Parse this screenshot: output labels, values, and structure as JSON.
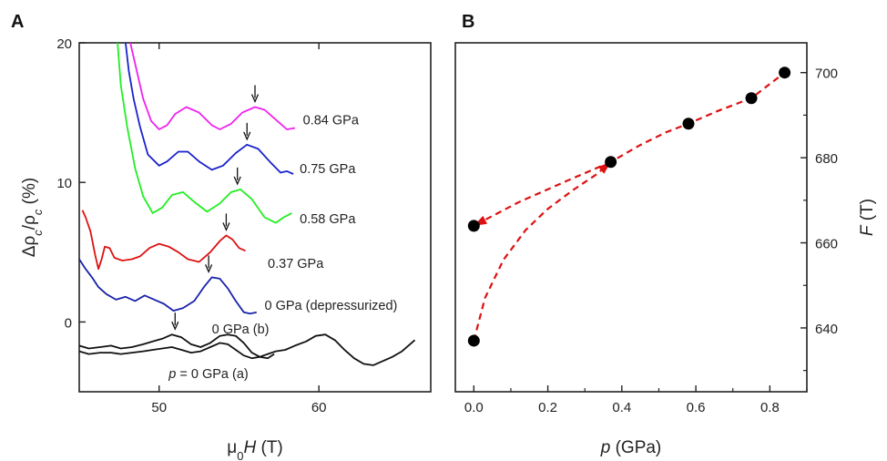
{
  "chart_data": [
    {
      "panel": "A",
      "type": "line",
      "xlabel_parts": [
        "μ",
        "0",
        "H",
        " (T)"
      ],
      "ylabel_parts": [
        "Δρ",
        "c",
        "/ρ",
        "c",
        " (%)"
      ],
      "xlim": [
        45,
        67
      ],
      "ylim": [
        -5,
        20
      ],
      "xticks": [
        50,
        60
      ],
      "yticks": [
        0,
        10,
        20
      ],
      "grid": false,
      "series": [
        {
          "name": "0.84 GPa",
          "color": "#ee22ee",
          "points": [
            [
              48.2,
              20
            ],
            [
              48.5,
              18.5
            ],
            [
              49,
              16
            ],
            [
              49.5,
              14.4
            ],
            [
              50,
              13.8
            ],
            [
              50.5,
              14.1
            ],
            [
              51,
              14.9
            ],
            [
              51.7,
              15.4
            ],
            [
              52.5,
              15
            ],
            [
              53.3,
              14.1
            ],
            [
              53.8,
              13.8
            ],
            [
              54.5,
              14.2
            ],
            [
              55.2,
              15
            ],
            [
              56,
              15.4
            ],
            [
              56.6,
              15.2
            ],
            [
              57.3,
              14.5
            ],
            [
              58,
              13.8
            ],
            [
              58.5,
              13.9
            ]
          ],
          "arrow_at": [
            56.0,
            15.4
          ]
        },
        {
          "name": "0.75 GPa",
          "color": "#1a22cc",
          "points": [
            [
              47.9,
              20
            ],
            [
              48.1,
              18
            ],
            [
              48.4,
              16
            ],
            [
              48.8,
              14
            ],
            [
              49.3,
              12
            ],
            [
              50,
              11.2
            ],
            [
              50.5,
              11.5
            ],
            [
              51.2,
              12.2
            ],
            [
              51.8,
              12.2
            ],
            [
              52.5,
              11.5
            ],
            [
              53.3,
              10.9
            ],
            [
              54,
              11.2
            ],
            [
              54.8,
              12.1
            ],
            [
              55.5,
              12.7
            ],
            [
              56.2,
              12.4
            ],
            [
              57,
              11.4
            ],
            [
              57.6,
              10.7
            ],
            [
              58,
              10.8
            ],
            [
              58.4,
              10.6
            ]
          ],
          "arrow_at": [
            55.5,
            12.7
          ]
        },
        {
          "name": "0.58 GPa",
          "color": "#22ee22",
          "points": [
            [
              47.4,
              20
            ],
            [
              47.6,
              17
            ],
            [
              48,
              14
            ],
            [
              48.5,
              11
            ],
            [
              49,
              9
            ],
            [
              49.6,
              7.8
            ],
            [
              50.2,
              8.2
            ],
            [
              50.8,
              9.1
            ],
            [
              51.5,
              9.3
            ],
            [
              52.2,
              8.6
            ],
            [
              53,
              7.9
            ],
            [
              53.8,
              8.5
            ],
            [
              54.5,
              9.3
            ],
            [
              55.1,
              9.5
            ],
            [
              55.8,
              8.8
            ],
            [
              56.6,
              7.5
            ],
            [
              57.3,
              7.1
            ],
            [
              57.8,
              7.5
            ],
            [
              58.3,
              7.8
            ]
          ],
          "arrow_at": [
            54.9,
            9.5
          ]
        },
        {
          "name": "0.37 GPa",
          "color": "#dd1111",
          "points": [
            [
              45.2,
              8
            ],
            [
              45.4,
              7.5
            ],
            [
              45.7,
              6.5
            ],
            [
              46,
              4.8
            ],
            [
              46.2,
              3.8
            ],
            [
              46.4,
              4.5
            ],
            [
              46.6,
              5.4
            ],
            [
              46.9,
              5.3
            ],
            [
              47.2,
              4.6
            ],
            [
              47.7,
              4.4
            ],
            [
              48.3,
              4.5
            ],
            [
              48.8,
              4.7
            ],
            [
              49.4,
              5.3
            ],
            [
              50,
              5.6
            ],
            [
              50.6,
              5.4
            ],
            [
              51.2,
              5
            ],
            [
              51.8,
              4.5
            ],
            [
              52.5,
              4.3
            ],
            [
              53.2,
              5
            ],
            [
              53.8,
              5.8
            ],
            [
              54.2,
              6.2
            ],
            [
              54.6,
              5.9
            ],
            [
              55,
              5.3
            ],
            [
              55.4,
              5.1
            ]
          ],
          "arrow_at": [
            54.2,
            6.2
          ]
        },
        {
          "name": "0 GPa (depressurized)",
          "color": "#1a22aa",
          "points": [
            [
              45,
              4.5
            ],
            [
              45.4,
              3.8
            ],
            [
              45.8,
              3.2
            ],
            [
              46.2,
              2.5
            ],
            [
              46.7,
              2
            ],
            [
              47.3,
              1.6
            ],
            [
              47.9,
              1.8
            ],
            [
              48.5,
              1.5
            ],
            [
              49.1,
              1.9
            ],
            [
              49.7,
              1.6
            ],
            [
              50.3,
              1.3
            ],
            [
              50.9,
              0.8
            ],
            [
              51.5,
              1
            ],
            [
              52.2,
              1.5
            ],
            [
              52.8,
              2.5
            ],
            [
              53.3,
              3.2
            ],
            [
              53.8,
              3.1
            ],
            [
              54.3,
              2.4
            ],
            [
              54.8,
              1.5
            ],
            [
              55.3,
              0.7
            ],
            [
              55.7,
              0.6
            ],
            [
              56.1,
              0.7
            ]
          ],
          "arrow_at": [
            53.1,
            3.2
          ]
        },
        {
          "name": "0 GPa (b)",
          "color": "#111111",
          "points": [
            [
              45,
              -1.7
            ],
            [
              45.6,
              -1.9
            ],
            [
              46.3,
              -1.8
            ],
            [
              47,
              -1.7
            ],
            [
              47.6,
              -1.9
            ],
            [
              48.3,
              -1.8
            ],
            [
              49,
              -1.6
            ],
            [
              49.6,
              -1.4
            ],
            [
              50.2,
              -1.2
            ],
            [
              50.8,
              -0.9
            ],
            [
              51.4,
              -1.1
            ],
            [
              52,
              -1.6
            ],
            [
              52.6,
              -1.8
            ],
            [
              53.2,
              -1.5
            ],
            [
              53.8,
              -1
            ],
            [
              54.3,
              -0.9
            ],
            [
              54.8,
              -1
            ],
            [
              55.3,
              -1.5
            ],
            [
              55.8,
              -2.2
            ],
            [
              56.3,
              -2.5
            ],
            [
              56.8,
              -2.6
            ],
            [
              57.2,
              -2.3
            ]
          ],
          "arrow_at": [
            51.0,
            -0.9
          ]
        },
        {
          "name": "p = 0 GPa (a)",
          "color": "#111111",
          "points": [
            [
              45,
              -2.1
            ],
            [
              45.6,
              -2.3
            ],
            [
              46.3,
              -2.2
            ],
            [
              47,
              -2.2
            ],
            [
              47.6,
              -2.3
            ],
            [
              48.3,
              -2.2
            ],
            [
              49,
              -2.1
            ],
            [
              49.6,
              -2
            ],
            [
              50.2,
              -1.9
            ],
            [
              50.8,
              -1.8
            ],
            [
              51.4,
              -2
            ],
            [
              52,
              -2.2
            ],
            [
              52.6,
              -2.1
            ],
            [
              53.2,
              -1.8
            ],
            [
              53.8,
              -1.5
            ],
            [
              54.3,
              -1.6
            ],
            [
              54.8,
              -2
            ],
            [
              55.3,
              -2.4
            ],
            [
              55.8,
              -2.6
            ],
            [
              56.3,
              -2.5
            ],
            [
              56.8,
              -2.3
            ],
            [
              57.3,
              -2.1
            ],
            [
              57.9,
              -2
            ],
            [
              58.5,
              -1.7
            ],
            [
              59.2,
              -1.4
            ],
            [
              59.8,
              -1
            ],
            [
              60.4,
              -0.9
            ],
            [
              61,
              -1.3
            ],
            [
              61.6,
              -2
            ],
            [
              62.2,
              -2.6
            ],
            [
              62.8,
              -3
            ],
            [
              63.4,
              -3.1
            ],
            [
              64,
              -2.8
            ],
            [
              64.6,
              -2.5
            ],
            [
              65.2,
              -2.1
            ],
            [
              65.8,
              -1.5
            ],
            [
              66,
              -1.3
            ]
          ],
          "arrow_at": null
        }
      ],
      "curve_labels": [
        {
          "series": "0.84 GPa",
          "text": "0.84 GPa",
          "x": 59.0,
          "y": 14.5
        },
        {
          "series": "0.75 GPa",
          "text": "0.75 GPa",
          "x": 58.8,
          "y": 11.0
        },
        {
          "series": "0.58 GPa",
          "text": "0.58 GPa",
          "x": 58.8,
          "y": 7.4
        },
        {
          "series": "0.37 GPa",
          "text": "0.37 GPa",
          "x": 56.8,
          "y": 4.2
        },
        {
          "series": "0 GPa (depressurized)",
          "text": "0 GPa (depressurized)",
          "x": 56.6,
          "y": 1.2
        },
        {
          "series": "0 GPa (b)",
          "text": "0 GPa (b)",
          "x": 53.3,
          "y": -0.5
        },
        {
          "series": "p = 0 GPa (a)",
          "text": "p = 0 GPa (a)",
          "x": 50.6,
          "y": -3.7
        }
      ]
    },
    {
      "panel": "B",
      "type": "scatter",
      "xlabel_parts": [
        "p",
        " (GPa)"
      ],
      "ylabel_parts": [
        "F",
        " (T)"
      ],
      "xlim": [
        -0.05,
        0.9
      ],
      "ylim": [
        625,
        707
      ],
      "xticks": [
        "0.0",
        "0.2",
        "0.4",
        "0.6",
        "0.8"
      ],
      "yticks": [
        640,
        660,
        680,
        700
      ],
      "yaxis_side": "right",
      "grid": false,
      "points": [
        {
          "x": 0.0,
          "y": 637
        },
        {
          "x": 0.0,
          "y": 664
        },
        {
          "x": 0.37,
          "y": 679
        },
        {
          "x": 0.58,
          "y": 688
        },
        {
          "x": 0.75,
          "y": 694
        },
        {
          "x": 0.84,
          "y": 700
        }
      ],
      "dashed_curves": [
        {
          "name": "pressurizing",
          "color": "#dd1111",
          "points": [
            [
              0.0,
              637
            ],
            [
              0.03,
              647
            ],
            [
              0.08,
              656
            ],
            [
              0.14,
              663
            ],
            [
              0.2,
              668
            ],
            [
              0.27,
              672.5
            ],
            [
              0.33,
              676
            ],
            [
              0.37,
              679
            ],
            [
              0.45,
              683
            ],
            [
              0.52,
              686
            ],
            [
              0.58,
              688
            ],
            [
              0.66,
              691
            ],
            [
              0.75,
              694
            ],
            [
              0.84,
              700
            ]
          ],
          "arrow_at_point": 7
        },
        {
          "name": "depressurizing",
          "color": "#dd1111",
          "points": [
            [
              0.37,
              679
            ],
            [
              0.25,
              674.5
            ],
            [
              0.12,
              669.5
            ],
            [
              0.0,
              664
            ]
          ],
          "arrow_at_point": 3
        }
      ]
    }
  ],
  "panel_letters": [
    "A",
    "B"
  ]
}
